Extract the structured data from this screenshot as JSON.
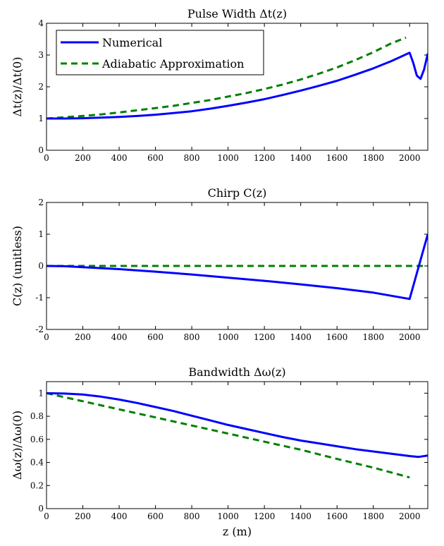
{
  "colors": {
    "numerical": "#0000FF",
    "adiabatic": "#008000",
    "axes": "#000000"
  },
  "xaxis_label": "z (m)",
  "legend": {
    "numerical": "Numerical",
    "adiabatic": "Adiabatic Approximation",
    "placement": "top-left"
  },
  "chart_data": [
    {
      "type": "line",
      "title": "Pulse Width Δt(z)",
      "xlabel": "",
      "ylabel": "Δt(z)/Δt(0)",
      "xlim": [
        0,
        2100
      ],
      "ylim": [
        0,
        4
      ],
      "xticks": [
        0,
        200,
        400,
        600,
        800,
        1000,
        1200,
        1400,
        1600,
        1800,
        2000
      ],
      "yticks": [
        0,
        1,
        2,
        3,
        4
      ],
      "series": [
        {
          "name": "Numerical",
          "style": "solid",
          "x": [
            0,
            100,
            200,
            300,
            400,
            500,
            600,
            700,
            800,
            900,
            1000,
            1100,
            1200,
            1300,
            1400,
            1500,
            1600,
            1700,
            1800,
            1900,
            2000,
            2020,
            2040,
            2060,
            2080,
            2100
          ],
          "y": [
            1.0,
            1.0,
            1.01,
            1.03,
            1.05,
            1.08,
            1.12,
            1.17,
            1.23,
            1.31,
            1.4,
            1.5,
            1.61,
            1.74,
            1.88,
            2.03,
            2.19,
            2.38,
            2.58,
            2.81,
            3.07,
            2.75,
            2.35,
            2.25,
            2.55,
            3.05
          ]
        },
        {
          "name": "Adiabatic Approximation",
          "style": "dashed",
          "x": [
            0,
            100,
            200,
            300,
            400,
            500,
            600,
            700,
            800,
            900,
            1000,
            1100,
            1200,
            1300,
            1400,
            1500,
            1600,
            1700,
            1800,
            1900,
            1980
          ],
          "y": [
            1.0,
            1.04,
            1.08,
            1.13,
            1.19,
            1.26,
            1.33,
            1.4,
            1.49,
            1.58,
            1.69,
            1.8,
            1.93,
            2.07,
            2.23,
            2.41,
            2.61,
            2.84,
            3.09,
            3.37,
            3.55
          ]
        }
      ]
    },
    {
      "type": "line",
      "title": "Chirp C(z)",
      "xlabel": "",
      "ylabel": "C(z) (unitless)",
      "xlim": [
        0,
        2100
      ],
      "ylim": [
        -2,
        2
      ],
      "xticks": [
        0,
        200,
        400,
        600,
        800,
        1000,
        1200,
        1400,
        1600,
        1800,
        2000
      ],
      "yticks": [
        -2,
        -1,
        0,
        1,
        2
      ],
      "series": [
        {
          "name": "Numerical",
          "style": "solid",
          "x": [
            0,
            100,
            200,
            400,
            600,
            800,
            1000,
            1200,
            1400,
            1600,
            1800,
            2000,
            2100
          ],
          "y": [
            0.0,
            -0.01,
            -0.04,
            -0.1,
            -0.18,
            -0.27,
            -0.37,
            -0.47,
            -0.58,
            -0.7,
            -0.84,
            -1.04,
            1.0
          ]
        },
        {
          "name": "Adiabatic Approximation",
          "style": "dashed",
          "x": [
            0,
            2100
          ],
          "y": [
            0.0,
            0.0
          ]
        }
      ]
    },
    {
      "type": "line",
      "title": "Bandwidth Δω(z)",
      "xlabel": "z (m)",
      "ylabel": "Δω(z)/Δω(0)",
      "xlim": [
        0,
        2100
      ],
      "ylim": [
        0,
        1.1
      ],
      "xticks": [
        0,
        200,
        400,
        600,
        800,
        1000,
        1200,
        1400,
        1600,
        1800,
        2000
      ],
      "yticks": [
        0,
        0.2,
        0.4,
        0.6,
        0.8,
        1
      ],
      "series": [
        {
          "name": "Numerical",
          "style": "solid",
          "x": [
            0,
            100,
            200,
            300,
            400,
            500,
            600,
            700,
            800,
            900,
            1000,
            1100,
            1200,
            1300,
            1400,
            1500,
            1600,
            1700,
            1800,
            1900,
            2000,
            2050,
            2100
          ],
          "y": [
            1.0,
            0.997,
            0.988,
            0.97,
            0.945,
            0.915,
            0.88,
            0.845,
            0.805,
            0.765,
            0.725,
            0.69,
            0.655,
            0.62,
            0.59,
            0.565,
            0.54,
            0.515,
            0.495,
            0.475,
            0.455,
            0.448,
            0.46
          ]
        },
        {
          "name": "Adiabatic Approximation",
          "style": "dashed",
          "x": [
            0,
            200,
            400,
            600,
            800,
            1000,
            1200,
            1400,
            1600,
            1800,
            2000
          ],
          "y": [
            1.0,
            0.93,
            0.86,
            0.79,
            0.72,
            0.65,
            0.58,
            0.51,
            0.43,
            0.355,
            0.27
          ]
        }
      ]
    }
  ]
}
